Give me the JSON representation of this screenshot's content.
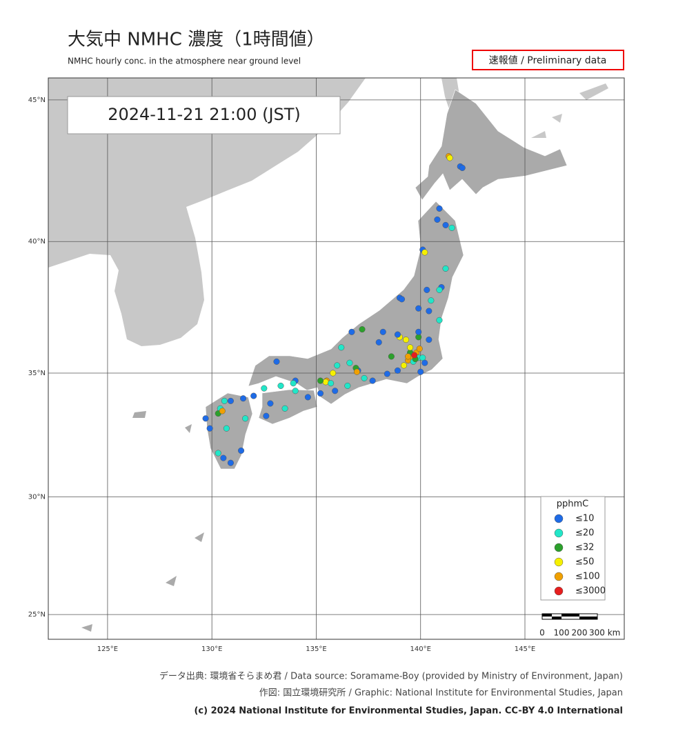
{
  "header": {
    "title": "大気中 NMHC  濃度（1時間値）",
    "subtitle": "NMHC hourly conc. in the atmosphere near ground level",
    "badge": "速報値 / Preliminary data"
  },
  "map": {
    "timestamp": "2024-11-21  21:00 (JST)",
    "lon_range": [
      122.16,
      149.76
    ],
    "lat_range": [
      23.92,
      45.74
    ],
    "lon_ticks": [
      {
        "value": 125,
        "label": "125°E"
      },
      {
        "value": 130,
        "label": "130°E"
      },
      {
        "value": 135,
        "label": "135°E"
      },
      {
        "value": 140,
        "label": "140°E"
      },
      {
        "value": 145,
        "label": "145°E"
      }
    ],
    "lat_ticks": [
      {
        "value": 25,
        "label": "25°N"
      },
      {
        "value": 30,
        "label": "30°N"
      },
      {
        "value": 35,
        "label": "35°N"
      },
      {
        "value": 40,
        "label": "40°N"
      },
      {
        "value": 45,
        "label": "45°N"
      }
    ],
    "scale_labels": [
      "0",
      "100",
      "200",
      "300 km"
    ],
    "stations": [
      [
        141.35,
        43.06,
        4
      ],
      [
        141.4,
        43.0,
        3
      ],
      [
        141.9,
        42.7,
        0
      ],
      [
        142.0,
        42.65,
        0
      ],
      [
        140.8,
        40.8,
        0
      ],
      [
        141.2,
        40.6,
        0
      ],
      [
        140.9,
        41.2,
        0
      ],
      [
        141.5,
        40.5,
        1
      ],
      [
        140.1,
        39.7,
        0
      ],
      [
        140.2,
        39.6,
        3
      ],
      [
        141.2,
        39.0,
        1
      ],
      [
        141.0,
        38.3,
        0
      ],
      [
        140.9,
        38.2,
        1
      ],
      [
        140.3,
        38.2,
        0
      ],
      [
        140.5,
        37.8,
        1
      ],
      [
        140.4,
        37.4,
        0
      ],
      [
        140.9,
        37.05,
        1
      ],
      [
        139.9,
        37.5,
        0
      ],
      [
        139.0,
        37.9,
        0
      ],
      [
        139.1,
        37.85,
        0
      ],
      [
        139.6,
        35.6,
        4
      ],
      [
        139.8,
        35.8,
        4
      ],
      [
        139.5,
        35.8,
        2
      ],
      [
        139.9,
        35.6,
        1
      ],
      [
        139.4,
        35.5,
        4
      ],
      [
        139.65,
        35.45,
        1
      ],
      [
        140.1,
        35.6,
        1
      ],
      [
        140.2,
        35.4,
        0
      ],
      [
        140.0,
        35.05,
        0
      ],
      [
        139.5,
        36.0,
        3
      ],
      [
        139.3,
        36.3,
        3
      ],
      [
        139.9,
        36.4,
        2
      ],
      [
        140.4,
        36.3,
        0
      ],
      [
        139.9,
        36.6,
        0
      ],
      [
        139.0,
        36.4,
        3
      ],
      [
        138.9,
        36.5,
        0
      ],
      [
        139.2,
        35.3,
        3
      ],
      [
        139.95,
        35.95,
        4
      ],
      [
        139.4,
        35.65,
        4
      ],
      [
        139.75,
        35.55,
        2
      ],
      [
        139.7,
        35.7,
        5
      ],
      [
        138.2,
        36.6,
        0
      ],
      [
        138.0,
        36.2,
        0
      ],
      [
        138.6,
        35.65,
        2
      ],
      [
        138.4,
        34.97,
        0
      ],
      [
        138.9,
        35.1,
        0
      ],
      [
        137.7,
        34.7,
        0
      ],
      [
        137.0,
        35.1,
        0
      ],
      [
        136.9,
        35.2,
        2
      ],
      [
        136.95,
        35.05,
        4
      ],
      [
        136.6,
        35.4,
        1
      ],
      [
        136.7,
        36.6,
        0
      ],
      [
        136.2,
        36.0,
        1
      ],
      [
        137.2,
        36.7,
        2
      ],
      [
        137.3,
        34.8,
        1
      ],
      [
        135.5,
        34.7,
        4
      ],
      [
        135.45,
        34.65,
        3
      ],
      [
        135.7,
        34.6,
        1
      ],
      [
        135.2,
        34.7,
        2
      ],
      [
        135.8,
        35.0,
        3
      ],
      [
        136.0,
        35.3,
        1
      ],
      [
        135.9,
        34.3,
        0
      ],
      [
        135.2,
        34.2,
        0
      ],
      [
        136.5,
        34.5,
        1
      ],
      [
        134.0,
        34.7,
        0
      ],
      [
        133.9,
        34.6,
        1
      ],
      [
        133.3,
        34.5,
        1
      ],
      [
        132.5,
        34.4,
        1
      ],
      [
        132.0,
        34.1,
        0
      ],
      [
        131.5,
        34.0,
        0
      ],
      [
        133.1,
        35.45,
        0
      ],
      [
        132.8,
        33.8,
        0
      ],
      [
        133.5,
        33.6,
        1
      ],
      [
        134.6,
        34.05,
        0
      ],
      [
        134.0,
        34.3,
        1
      ],
      [
        132.6,
        33.3,
        0
      ],
      [
        130.4,
        33.6,
        1
      ],
      [
        130.6,
        33.9,
        1
      ],
      [
        130.9,
        33.9,
        0
      ],
      [
        130.3,
        33.4,
        2
      ],
      [
        129.9,
        32.8,
        0
      ],
      [
        129.7,
        33.2,
        0
      ],
      [
        130.7,
        32.8,
        1
      ],
      [
        131.6,
        33.2,
        1
      ],
      [
        131.4,
        31.9,
        0
      ],
      [
        130.55,
        31.6,
        0
      ],
      [
        130.3,
        31.8,
        1
      ],
      [
        130.9,
        31.4,
        0
      ],
      [
        130.5,
        33.5,
        4
      ]
    ]
  },
  "legend": {
    "title": "pphmC",
    "classes": [
      {
        "label": "≤10",
        "color": "#1e6be6"
      },
      {
        "label": "≤20",
        "color": "#22e6c8"
      },
      {
        "label": "≤32",
        "color": "#2ca02c"
      },
      {
        "label": "≤50",
        "color": "#f5f000"
      },
      {
        "label": "≤100",
        "color": "#f0a000"
      },
      {
        "label": "≤3000",
        "color": "#e61e1e"
      }
    ]
  },
  "footer": {
    "source": "データ出典: 環境省そらまめ君 / Data source: Soramame-Boy (provided by Ministry of Environment, Japan)",
    "graphic": "作図: 国立環境研究所 / Graphic: National Institute for Environmental Studies, Japan",
    "copyright": "(c) 2024 National Institute for Environmental Studies, Japan. CC-BY 4.0 International"
  }
}
